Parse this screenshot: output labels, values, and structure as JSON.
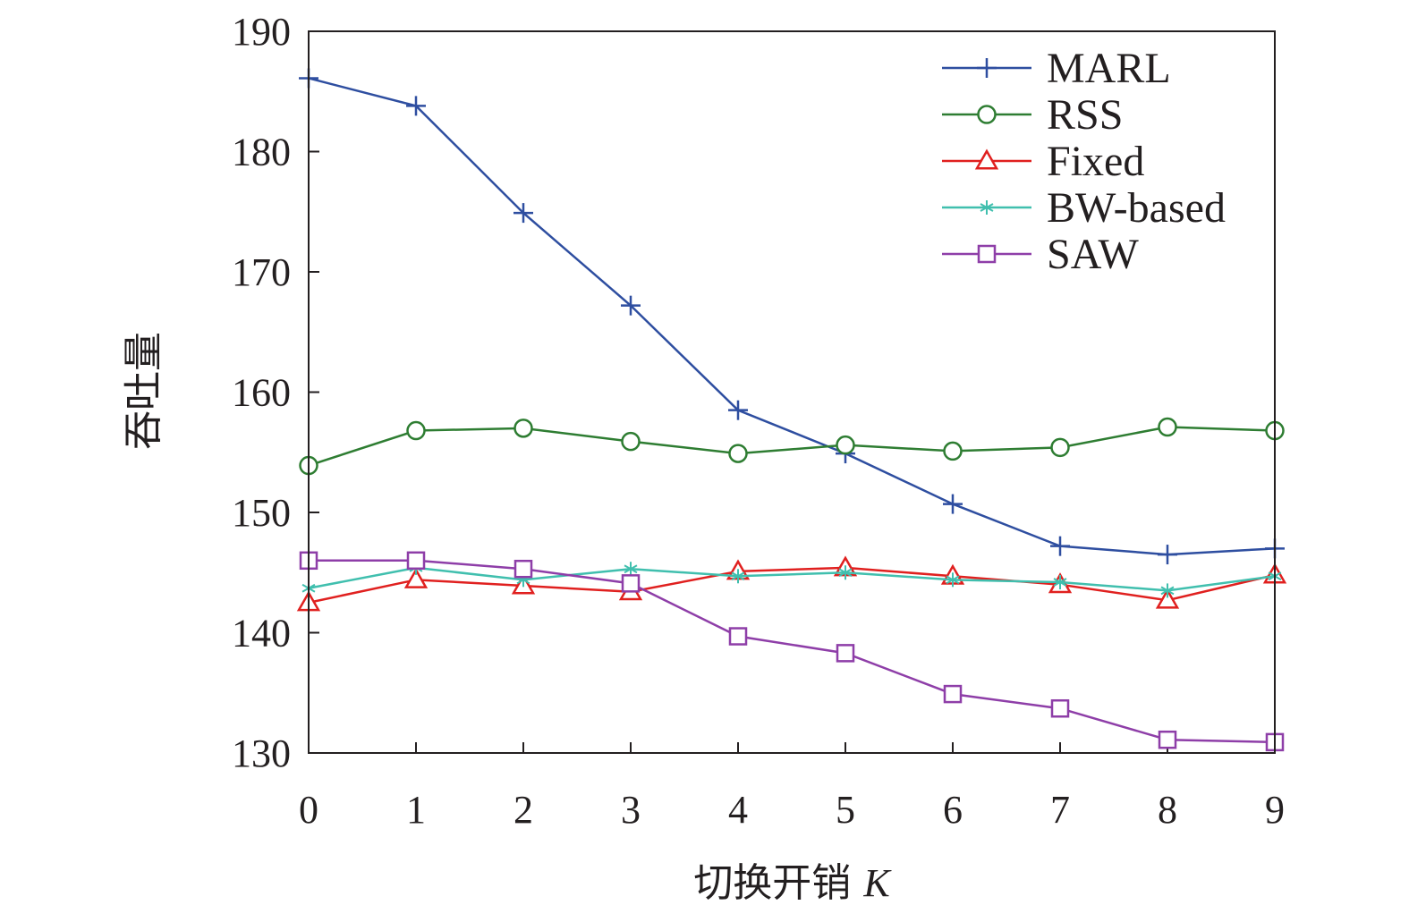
{
  "chart_data": {
    "type": "line",
    "xlabel": "切换开销 K",
    "xlabel_main": "切换开销",
    "xlabel_var": "K",
    "ylabel": "吞吐量",
    "x": [
      0,
      1,
      2,
      3,
      4,
      5,
      6,
      7,
      8,
      9
    ],
    "xlim": [
      0,
      9
    ],
    "ylim": [
      130,
      190
    ],
    "xticks": [
      "0",
      "1",
      "2",
      "3",
      "4",
      "5",
      "6",
      "7",
      "8",
      "9"
    ],
    "yticks": [
      "130",
      "140",
      "150",
      "160",
      "170",
      "180",
      "190"
    ],
    "grid": false,
    "legend_position": "top-right",
    "series": [
      {
        "name": "MARL",
        "color": "#2e4ea0",
        "marker": "plus",
        "values": [
          186.1,
          183.8,
          174.9,
          167.2,
          158.5,
          154.9,
          150.7,
          147.2,
          146.5,
          147.0
        ]
      },
      {
        "name": "RSS",
        "color": "#2e7d32",
        "marker": "circle",
        "values": [
          153.9,
          156.8,
          157.0,
          155.9,
          154.9,
          155.6,
          155.1,
          155.4,
          157.1,
          156.8
        ]
      },
      {
        "name": "Fixed",
        "color": "#e0201f",
        "marker": "triangle",
        "values": [
          142.5,
          144.4,
          143.9,
          143.4,
          145.1,
          145.4,
          144.7,
          144.0,
          142.7,
          144.8
        ]
      },
      {
        "name": "BW-based",
        "color": "#40bfae",
        "marker": "asterisk",
        "values": [
          143.7,
          145.4,
          144.4,
          145.3,
          144.7,
          145.0,
          144.4,
          144.2,
          143.5,
          144.7
        ]
      },
      {
        "name": "SAW",
        "color": "#8e3ea8",
        "marker": "square",
        "values": [
          146.0,
          146.0,
          145.3,
          144.1,
          139.7,
          138.3,
          134.9,
          133.7,
          131.1,
          130.9
        ]
      }
    ]
  }
}
